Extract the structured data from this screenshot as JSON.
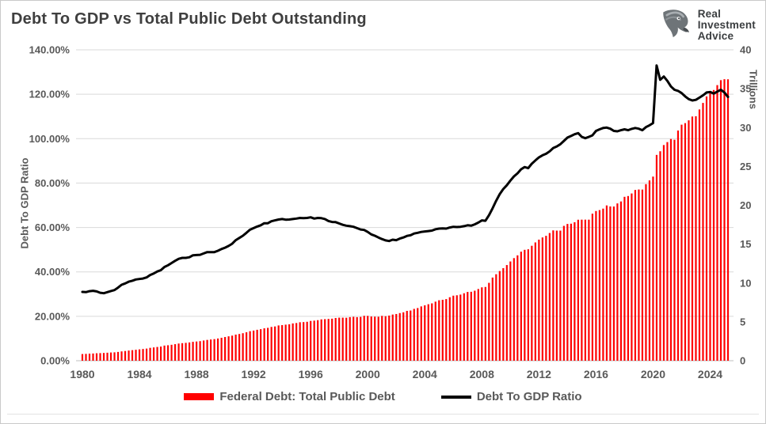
{
  "header": {
    "title": "Debt To GDP vs Total Public Debt Outstanding"
  },
  "logo": {
    "name": "Real Investment Advice",
    "lines": [
      "Real",
      "Investment",
      "Advice"
    ]
  },
  "legend": [
    {
      "label": "Federal Debt: Total Public Debt",
      "color": "#FF0000",
      "swatch": "bar"
    },
    {
      "label": "Debt To GDP Ratio",
      "color": "#000000",
      "swatch": "line"
    }
  ],
  "chart_data": {
    "type": "combo",
    "title": "Debt To GDP vs Total Public Debt Outstanding",
    "x_frequency": "quarterly",
    "x_range": {
      "start": "1980 Q1",
      "end": "2025 Q2"
    },
    "x_ticks": [
      1980,
      1984,
      1988,
      1992,
      1996,
      2000,
      2004,
      2008,
      2012,
      2016,
      2020,
      2024
    ],
    "grid": "horizontal",
    "legend_position": "bottom",
    "left_axis": {
      "title": "Debt To GDP Ratio",
      "min": 0,
      "max": 140,
      "tick_values": [
        0,
        20,
        40,
        60,
        80,
        100,
        120,
        140
      ],
      "ticks": [
        "0.00%",
        "20.00%",
        "40.00%",
        "60.00%",
        "80.00%",
        "100.00%",
        "120.00%",
        "140.00%"
      ]
    },
    "right_axis": {
      "title": "Trillions",
      "min": 0,
      "max": 40,
      "tick_values": [
        0,
        5,
        10,
        15,
        20,
        25,
        30,
        35,
        40
      ],
      "ticks": [
        "0",
        "5",
        "10",
        "15",
        "20",
        "25",
        "30",
        "35",
        "40"
      ]
    },
    "series": [
      {
        "name": "Federal Debt: Total Public Debt",
        "type": "bar",
        "axis": "right",
        "color": "#FF0000",
        "unit": "trillions USD",
        "values": [
          0.86,
          0.88,
          0.91,
          0.93,
          0.96,
          0.98,
          1.0,
          1.03,
          1.06,
          1.08,
          1.13,
          1.2,
          1.25,
          1.31,
          1.36,
          1.41,
          1.46,
          1.51,
          1.56,
          1.66,
          1.71,
          1.77,
          1.82,
          1.95,
          1.99,
          2.05,
          2.13,
          2.21,
          2.26,
          2.3,
          2.35,
          2.43,
          2.47,
          2.52,
          2.6,
          2.68,
          2.73,
          2.78,
          2.86,
          2.95,
          3.05,
          3.14,
          3.23,
          3.36,
          3.44,
          3.54,
          3.66,
          3.8,
          3.88,
          3.98,
          4.06,
          4.17,
          4.23,
          4.35,
          4.41,
          4.54,
          4.58,
          4.64,
          4.69,
          4.8,
          4.85,
          4.95,
          4.97,
          5.01,
          5.12,
          5.16,
          5.22,
          5.32,
          5.35,
          5.38,
          5.41,
          5.5,
          5.54,
          5.54,
          5.53,
          5.61,
          5.65,
          5.61,
          5.64,
          5.78,
          5.77,
          5.69,
          5.67,
          5.66,
          5.77,
          5.73,
          5.81,
          5.94,
          6.01,
          6.13,
          6.23,
          6.41,
          6.46,
          6.67,
          6.78,
          6.99,
          7.13,
          7.27,
          7.38,
          7.6,
          7.78,
          7.84,
          7.93,
          8.17,
          8.37,
          8.42,
          8.51,
          8.68,
          8.85,
          8.87,
          9.01,
          9.23,
          9.44,
          9.49,
          10.02,
          10.7,
          11.13,
          11.54,
          11.91,
          12.31,
          12.77,
          13.2,
          13.56,
          14.03,
          14.27,
          14.34,
          14.79,
          15.22,
          15.58,
          15.86,
          16.07,
          16.43,
          16.77,
          16.74,
          16.74,
          17.35,
          17.6,
          17.63,
          17.82,
          18.14,
          18.15,
          18.15,
          18.15,
          18.92,
          19.26,
          19.38,
          19.57,
          19.98,
          19.85,
          19.84,
          20.24,
          20.49,
          21.09,
          21.19,
          21.52,
          21.97,
          22.03,
          22.02,
          22.72,
          23.2,
          23.69,
          26.48,
          26.95,
          27.75,
          28.13,
          28.53,
          28.43,
          29.62,
          30.37,
          30.57,
          30.93,
          31.42,
          31.46,
          32.33,
          33.17,
          34.0,
          34.58,
          34.83,
          35.46,
          36.1,
          36.22,
          36.21
        ]
      },
      {
        "name": "Debt To GDP Ratio",
        "type": "line",
        "axis": "left",
        "color": "#000000",
        "unit": "percent",
        "values": [
          31.0,
          30.9,
          31.3,
          31.5,
          31.2,
          30.6,
          30.4,
          30.9,
          31.4,
          31.8,
          32.9,
          34.2,
          34.8,
          35.6,
          36.0,
          36.6,
          36.8,
          37.0,
          37.5,
          38.6,
          39.3,
          40.2,
          40.8,
          42.2,
          43.0,
          44.0,
          45.0,
          45.9,
          46.3,
          46.3,
          46.6,
          47.5,
          47.6,
          47.7,
          48.3,
          48.9,
          48.9,
          48.9,
          49.5,
          50.3,
          50.9,
          51.7,
          52.7,
          54.3,
          55.3,
          56.3,
          57.6,
          59.0,
          59.7,
          60.4,
          61.0,
          61.9,
          61.9,
          62.8,
          63.2,
          63.6,
          63.8,
          63.5,
          63.6,
          63.8,
          64.0,
          64.3,
          64.2,
          64.3,
          64.6,
          64.0,
          64.3,
          64.2,
          63.8,
          62.9,
          62.5,
          62.4,
          61.8,
          61.2,
          60.8,
          60.6,
          60.3,
          59.7,
          59.1,
          58.9,
          58.0,
          56.9,
          56.3,
          55.5,
          54.8,
          54.2,
          53.9,
          54.5,
          54.3,
          55.0,
          55.5,
          56.2,
          56.5,
          57.3,
          57.6,
          58.0,
          58.2,
          58.4,
          58.6,
          59.2,
          59.5,
          59.6,
          59.5,
          60.0,
          60.3,
          60.2,
          60.3,
          60.6,
          61.0,
          60.8,
          61.4,
          62.2,
          63.2,
          63.0,
          65.5,
          68.6,
          72.0,
          75.0,
          77.3,
          79.0,
          81.1,
          83.0,
          84.4,
          86.2,
          87.2,
          86.7,
          88.7,
          90.2,
          91.6,
          92.5,
          93.2,
          94.3,
          95.8,
          96.5,
          97.5,
          99.0,
          100.5,
          101.2,
          102.0,
          102.5,
          100.8,
          100.2,
          100.8,
          101.5,
          103.5,
          104.2,
          104.8,
          105.0,
          104.5,
          103.5,
          103.3,
          103.8,
          104.2,
          103.8,
          104.4,
          104.8,
          104.5,
          103.8,
          105.2,
          106.0,
          107.0,
          133.0,
          126.5,
          128.0,
          126.0,
          123.5,
          122.0,
          121.5,
          120.5,
          119.0,
          117.8,
          117.2,
          117.5,
          118.5,
          119.5,
          120.8,
          121.0,
          120.3,
          121.2,
          122.0,
          120.8,
          118.8
        ]
      }
    ],
    "style": {
      "grid_color": "#d9d9d9",
      "axis_line_color": "#bfbfbf",
      "tick_label_color": "#595959",
      "line_width": 3,
      "bar_width": 2.2
    }
  }
}
